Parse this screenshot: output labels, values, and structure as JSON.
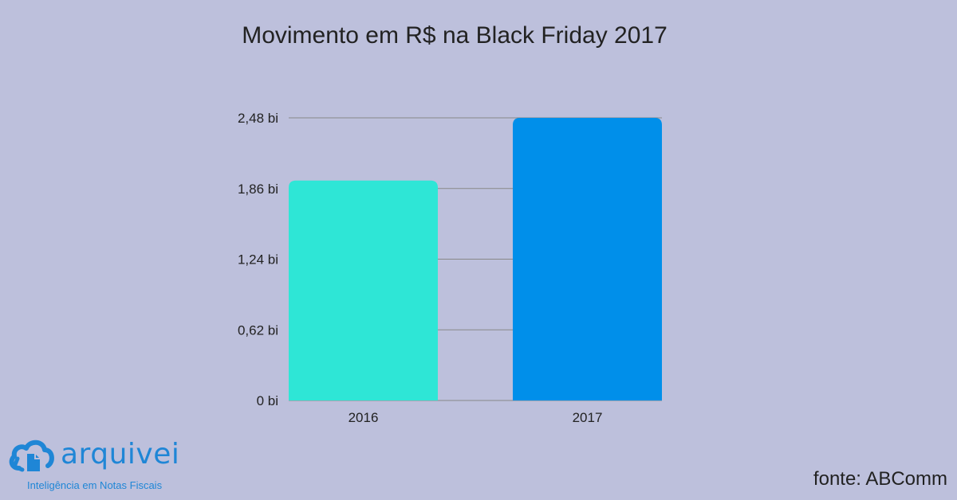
{
  "chart_data": {
    "type": "bar",
    "title": "Movimento em R$ na Black Friday 2017",
    "categories": [
      "2016",
      "2017"
    ],
    "values": [
      1.93,
      2.48
    ],
    "bar_colors": [
      "#2ee6d6",
      "#008fea"
    ],
    "yticks": [
      0,
      0.62,
      1.24,
      1.86,
      2.48
    ],
    "ytick_labels": [
      "0 bi",
      "0,62 bi",
      "1,24 bi",
      "1,86 bi",
      "2,48 bi"
    ],
    "ylim": [
      0,
      2.48
    ],
    "grid": true,
    "xlabel": "",
    "ylabel": ""
  },
  "colors": {
    "background": "#bdc0dc",
    "grid": "#888888",
    "brand": "#1f86d6"
  },
  "logo": {
    "name": "arquivei",
    "tagline": "Inteligência em Notas Fiscais",
    "icon": "cloud-document-icon"
  },
  "source": "fonte: ABComm"
}
